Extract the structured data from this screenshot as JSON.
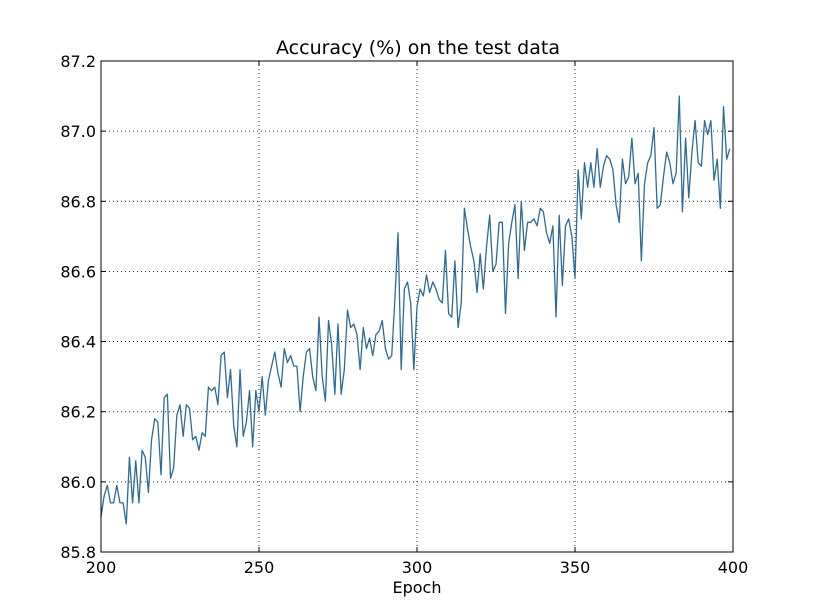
{
  "chart_data": {
    "type": "line",
    "title": "Accuracy (%) on the test data",
    "xlabel": "Epoch",
    "ylabel": "",
    "xlim": [
      200,
      400
    ],
    "ylim": [
      85.8,
      87.2
    ],
    "grid": true,
    "grid_style": "dotted",
    "legend": "none",
    "x_ticks": [
      "200",
      "250",
      "300",
      "350",
      "400"
    ],
    "y_ticks": [
      "85.8",
      "86.0",
      "86.2",
      "86.4",
      "86.6",
      "86.8",
      "87.0",
      "87.2"
    ],
    "series": [
      {
        "color": "#2e6a96",
        "x_start": 200,
        "x_step": 1,
        "values": [
          85.9,
          85.96,
          85.99,
          85.94,
          85.94,
          85.99,
          85.94,
          85.94,
          85.88,
          86.07,
          85.94,
          86.06,
          85.94,
          86.09,
          86.07,
          85.97,
          86.12,
          86.18,
          86.17,
          86.02,
          86.24,
          86.25,
          86.01,
          86.04,
          86.19,
          86.22,
          86.13,
          86.22,
          86.21,
          86.12,
          86.13,
          86.09,
          86.14,
          86.13,
          86.27,
          86.26,
          86.27,
          86.22,
          86.36,
          86.37,
          86.24,
          86.32,
          86.16,
          86.1,
          86.32,
          86.13,
          86.17,
          86.26,
          86.1,
          86.26,
          86.2,
          86.3,
          86.19,
          86.29,
          86.33,
          86.37,
          86.31,
          86.27,
          86.38,
          86.34,
          86.36,
          86.33,
          86.33,
          86.2,
          86.3,
          86.37,
          86.38,
          86.3,
          86.26,
          86.47,
          86.3,
          86.23,
          86.46,
          86.39,
          86.25,
          86.45,
          86.25,
          86.32,
          86.49,
          86.44,
          86.45,
          86.42,
          86.32,
          86.44,
          86.38,
          86.41,
          86.36,
          86.42,
          86.43,
          86.46,
          86.38,
          86.35,
          86.36,
          86.52,
          86.71,
          86.32,
          86.55,
          86.57,
          86.51,
          86.32,
          86.5,
          86.55,
          86.53,
          86.59,
          86.54,
          86.57,
          86.55,
          86.52,
          86.51,
          86.66,
          86.48,
          86.47,
          86.63,
          86.44,
          86.51,
          86.78,
          86.72,
          86.67,
          86.63,
          86.54,
          86.65,
          86.55,
          86.67,
          86.76,
          86.6,
          86.62,
          86.74,
          86.74,
          86.48,
          86.68,
          86.74,
          86.79,
          86.58,
          86.8,
          86.66,
          86.74,
          86.74,
          86.75,
          86.73,
          86.78,
          86.77,
          86.71,
          86.68,
          86.73,
          86.47,
          86.76,
          86.56,
          86.73,
          86.75,
          86.7,
          86.58,
          86.89,
          86.75,
          86.91,
          86.84,
          86.91,
          86.84,
          86.95,
          86.84,
          86.9,
          86.93,
          86.92,
          86.89,
          86.79,
          86.74,
          86.92,
          86.85,
          86.87,
          86.98,
          86.85,
          86.88,
          86.63,
          86.85,
          86.91,
          86.93,
          87.01,
          86.78,
          86.79,
          86.87,
          86.94,
          86.91,
          86.85,
          86.88,
          87.1,
          86.77,
          86.98,
          86.81,
          86.94,
          87.03,
          86.91,
          86.9,
          87.03,
          86.99,
          87.03,
          86.86,
          86.92,
          86.78,
          87.07,
          86.92,
          86.95
        ]
      }
    ]
  }
}
